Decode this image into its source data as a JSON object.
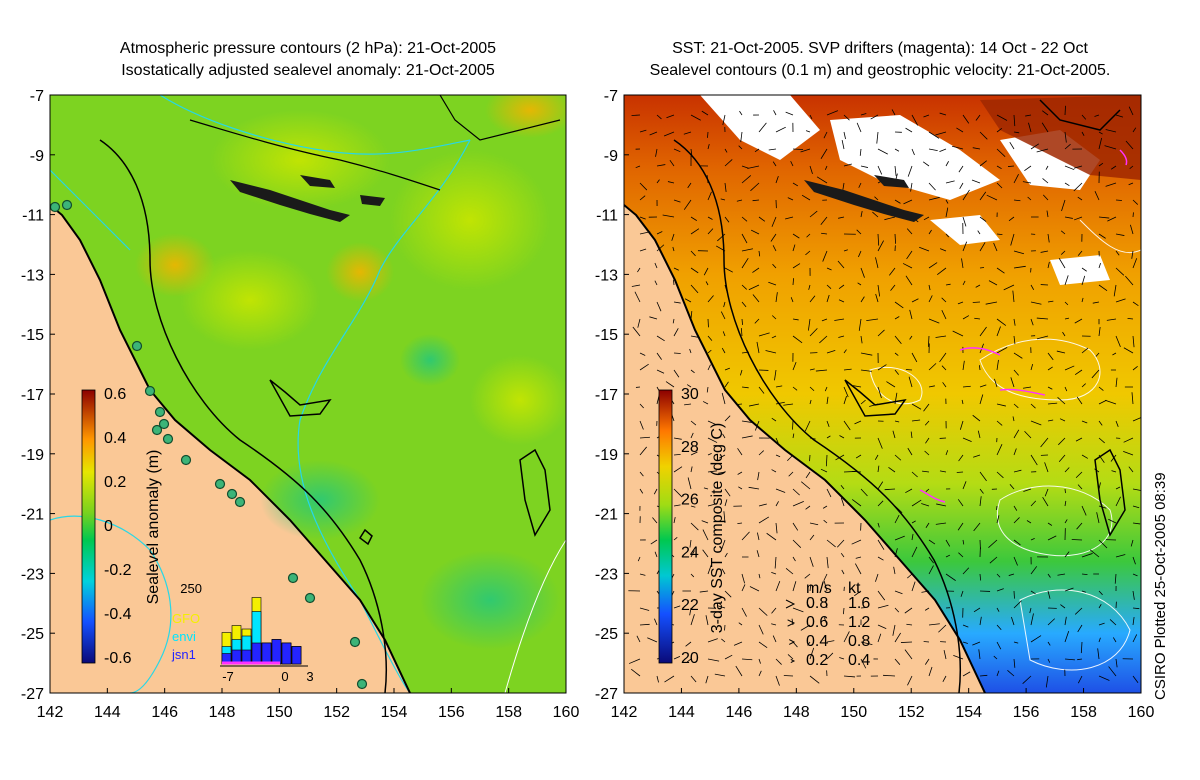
{
  "left_panel": {
    "title_line1": "Atmospheric pressure contours (2 hPa): 21-Oct-2005",
    "title_line2": "Isostatically adjusted sealevel anomaly: 21-Oct-2005",
    "colorbar": {
      "label": "Sealevel anomaly (m)",
      "ticks": [
        "0.6",
        "0.4",
        "0.2",
        "0",
        "-0.2",
        "-0.4",
        "-0.6"
      ],
      "range": [
        -0.6,
        0.6
      ]
    },
    "inset": {
      "top_label": "250",
      "legend": [
        {
          "name": "GFO",
          "color": "#f4ef00"
        },
        {
          "name": "envi",
          "color": "#00e5ff"
        },
        {
          "name": "jsn1",
          "color": "#2424ff"
        }
      ],
      "xticks": [
        "-7",
        "0",
        "3"
      ],
      "bars": [
        {
          "gfo": 0.45,
          "envi": 0.25,
          "jsn1": 0.15
        },
        {
          "gfo": 0.55,
          "envi": 0.35,
          "jsn1": 0.2
        },
        {
          "gfo": 0.5,
          "envi": 0.4,
          "jsn1": 0.2
        },
        {
          "gfo": 0.95,
          "envi": 0.75,
          "jsn1": 0.3
        },
        {
          "gfo": 0.3,
          "envi": 0.3,
          "jsn1": 0.3
        },
        {
          "gfo": 0.35,
          "envi": 0.35,
          "jsn1": 0.35
        },
        {
          "gfo": 0.3,
          "envi": 0.3,
          "jsn1": 0.3
        },
        {
          "gfo": 0.25,
          "envi": 0.25,
          "jsn1": 0.25
        }
      ]
    }
  },
  "right_panel": {
    "title_line1": "SST: 21-Oct-2005. SVP drifters (magenta): 14 Oct - 22 Oct",
    "title_line2": "Sealevel contours (0.1 m) and geostrophic velocity: 21-Oct-2005.",
    "colorbar": {
      "label": "3-day SST composite (deg C)",
      "ticks": [
        "30",
        "28",
        "26",
        "24",
        "22",
        "20"
      ],
      "range": [
        20,
        30
      ]
    },
    "velocity_legend": {
      "headers": [
        "m/s",
        "kt"
      ],
      "rows": [
        {
          "ms": "0.8",
          "kt": "1.6"
        },
        {
          "ms": "0.6",
          "kt": "1.2"
        },
        {
          "ms": "0.4",
          "kt": "0.8"
        },
        {
          "ms": "0.2",
          "kt": "0.4"
        }
      ]
    }
  },
  "axes": {
    "lat_ticks": [
      "-7",
      "-9",
      "-11",
      "-13",
      "-15",
      "-17",
      "-19",
      "-21",
      "-23",
      "-25",
      "-27"
    ],
    "lon_ticks": [
      "142",
      "144",
      "146",
      "148",
      "150",
      "152",
      "154",
      "156",
      "158",
      "160"
    ]
  },
  "footer": {
    "plotted": "CSIRO Plotted 25-Oct-2005 08:39"
  },
  "colors": {
    "land": "#fac896",
    "sea_green": "#7dd321",
    "sst_orange": "#f0a000",
    "sst_red": "#c83200",
    "sst_blue": "#1e64ff",
    "coast": "#000000",
    "contour_cyan": "#28d7e6"
  }
}
